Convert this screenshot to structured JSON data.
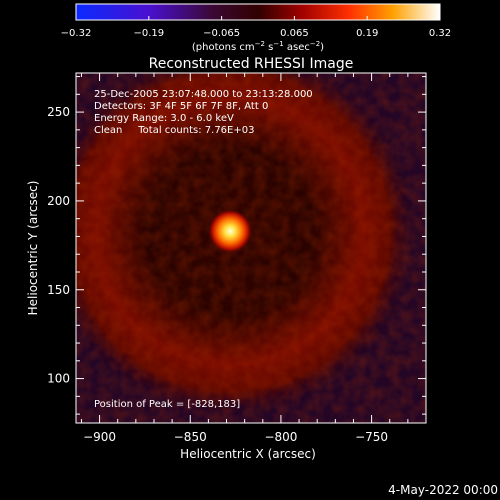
{
  "colorbar": {
    "ticks": [
      "−0.32",
      "−0.19",
      "−0.065",
      "0.065",
      "0.19",
      "0.32"
    ],
    "unit_text": "(photons cm",
    "unit_exp1": "−2",
    "unit_mid": " s",
    "unit_exp2": "−1",
    "unit_mid2": " asec",
    "unit_exp3": "−2",
    "unit_close": ")"
  },
  "annotations": [
    "25-Dec-2005 23:07:48.000 to 23:13:28.000",
    "Detectors: 3F 4F 5F 6F 7F 8F, Att 0",
    "Energy Range: 3.0 - 6.0 keV",
    "Clean     Total counts: 7.76E+03"
  ],
  "peak_text": "Position of Peak = [-828,183]",
  "footer_date": "4-May-2022 00:00",
  "colors": {
    "background": "#000000",
    "axes": "#ffffff"
  },
  "chart_data": {
    "type": "heatmap",
    "title": "Reconstructed RHESSI Image",
    "xlabel": "Heliocentric X (arcsec)",
    "ylabel": "Heliocentric Y (arcsec)",
    "xlim": [
      -913,
      -720
    ],
    "ylim": [
      75,
      272
    ],
    "xticks": [
      -900,
      -850,
      -800,
      -750
    ],
    "yticks": [
      100,
      150,
      200,
      250
    ],
    "xtick_labels": [
      "−900",
      "−850",
      "−800",
      "−750"
    ],
    "ytick_labels": [
      "100",
      "150",
      "200",
      "250"
    ],
    "color_range": [
      -0.32,
      0.32
    ],
    "colormap": "rainbow-like: blue → purple → red → orange → yellow → white",
    "peak": {
      "x": -828,
      "y": 183,
      "value": 0.32
    },
    "ring": {
      "center_x": -828,
      "center_y": 183,
      "radius_arcsec": 60,
      "intensity": 0.1
    },
    "grid": false
  }
}
